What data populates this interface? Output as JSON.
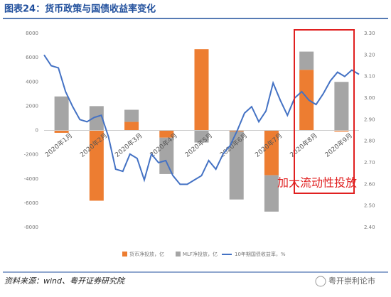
{
  "title": "图表24：货币政策与国债收益率变化",
  "chart_data": [
    {
      "type": "bar",
      "stacked": true,
      "categories": [
        "2020年1月",
        "2020年2月",
        "2020年3月",
        "2020年4月",
        "2020年5月",
        "2020年6月",
        "2020年7月",
        "2020年8月",
        "2020年9月"
      ],
      "series": [
        {
          "name": "货币净投放，亿",
          "color": "#ed7d31",
          "values": [
            -200,
            -5800,
            700,
            -600,
            6700,
            -100,
            -3700,
            5000,
            -100
          ]
        },
        {
          "name": "MLF净投放，亿",
          "color": "#a5a5a5",
          "values": [
            2800,
            2000,
            1000,
            -3000,
            -1000,
            -5600,
            -3000,
            1500,
            4000
          ]
        }
      ],
      "ylim": [
        -8000,
        8000
      ],
      "yticks": [
        -8000,
        -6000,
        -4000,
        -2000,
        0,
        2000,
        4000,
        6000,
        8000
      ],
      "annotation": "加大流动性投放"
    },
    {
      "type": "line",
      "series": [
        {
          "name": "10年期国债收益率，%",
          "color": "#4472c4",
          "axis": "y2",
          "values": [
            3.2,
            3.15,
            3.14,
            3.03,
            2.96,
            2.9,
            2.89,
            2.91,
            2.92,
            2.82,
            2.67,
            2.66,
            2.74,
            2.72,
            2.62,
            2.74,
            2.7,
            2.71,
            2.64,
            2.6,
            2.6,
            2.62,
            2.64,
            2.71,
            2.67,
            2.74,
            2.78,
            2.85,
            2.93,
            2.96,
            2.89,
            2.94,
            3.07,
            2.99,
            2.92,
            3.0,
            3.03,
            2.99,
            2.97,
            3.02,
            3.08,
            3.12,
            3.1,
            3.13,
            3.11
          ]
        }
      ],
      "y2lim": [
        2.4,
        3.3
      ],
      "y2ticks": [
        {
          "value": 2.4,
          "label": "2.40"
        },
        {
          "value": 2.5,
          "label": "2.50"
        },
        {
          "value": 2.6,
          "label": "2.60"
        },
        {
          "value": 2.7,
          "label": "2.70"
        },
        {
          "value": 2.8,
          "label": "2.80"
        },
        {
          "value": 2.9,
          "label": "2.90"
        },
        {
          "value": 3.0,
          "label": "3.00"
        },
        {
          "value": 3.1,
          "label": "3.10"
        },
        {
          "value": 3.2,
          "label": "3.20"
        },
        {
          "value": 3.3,
          "label": "3.30"
        }
      ]
    }
  ],
  "source": "资料来源：wind、粤开证券研究院",
  "watermark": "粤开崇利论市"
}
